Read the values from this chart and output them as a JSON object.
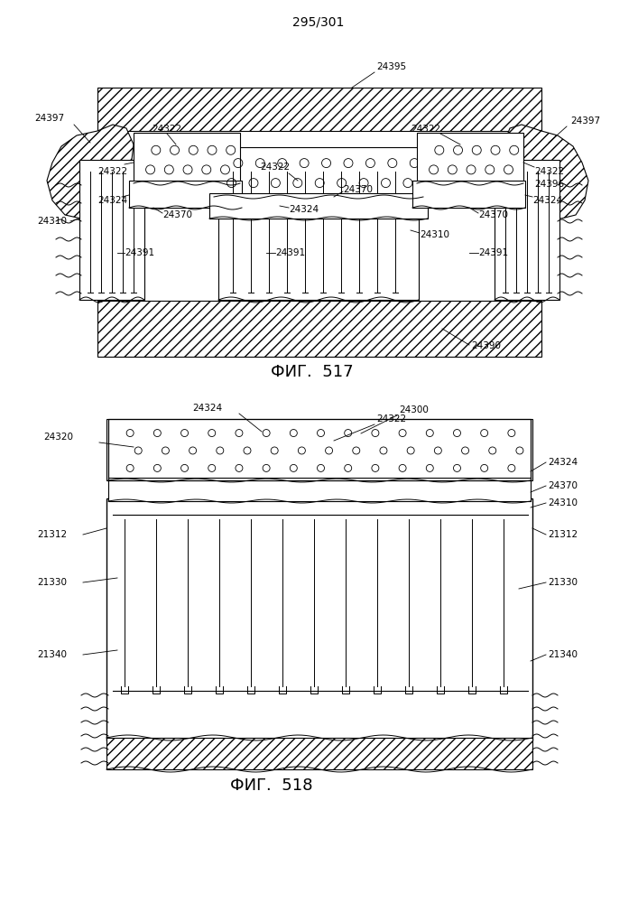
{
  "page_label": "295/301",
  "fig517_label": "ФИГ.  517",
  "fig518_label": "ФИГ.  518",
  "bg_color": "#ffffff",
  "line_color": "#000000",
  "label_fontsize": 7.5,
  "fig_label_fontsize": 13
}
